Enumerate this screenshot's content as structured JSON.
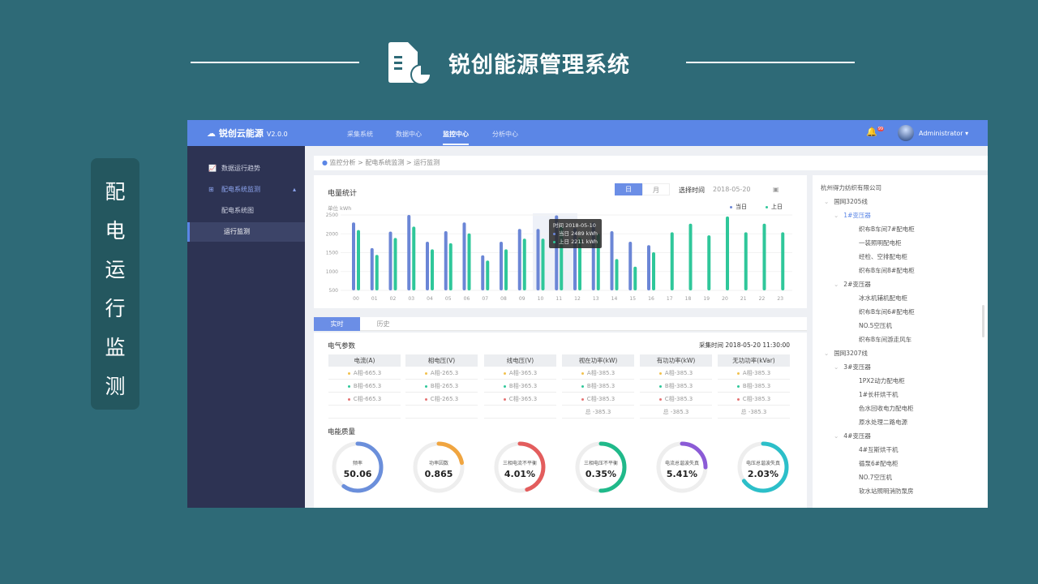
{
  "slide": {
    "title": "锐创能源管理系统",
    "side_label": [
      "配",
      "电",
      "运",
      "行",
      "监",
      "测"
    ]
  },
  "app": {
    "brand": "锐创云能源",
    "version": "V2.0.0",
    "nav": [
      "采集系统",
      "数据中心",
      "监控中心",
      "分析中心"
    ],
    "active_nav": 2,
    "notification_count": "99",
    "user": "Administrator"
  },
  "sidebar": {
    "items": [
      {
        "label": "数据运行趋势"
      },
      {
        "label": "配电系统监测"
      },
      {
        "label": "配电系统图"
      },
      {
        "label": "运行监测"
      }
    ]
  },
  "breadcrumb": "监控分析 > 配电系统监测 > 运行监测",
  "energy": {
    "title": "电量统计",
    "tab_day": "日",
    "tab_month": "月",
    "date_label": "选择时间",
    "date": "2018-05-20",
    "unit": "单位  kWh",
    "tooltip": {
      "time": "时间 2018-05-10",
      "today": "当日 2489 kWh",
      "yesterday": "上日 2211 kWh"
    }
  },
  "chart_data": {
    "type": "bar",
    "categories": [
      "00",
      "01",
      "02",
      "03",
      "04",
      "05",
      "06",
      "07",
      "08",
      "09",
      "10",
      "11",
      "12",
      "13",
      "14",
      "15",
      "16",
      "17",
      "18",
      "19",
      "20",
      "21",
      "22",
      "23"
    ],
    "yticks": [
      500,
      1000,
      1500,
      2000,
      2500
    ],
    "ylim": [
      500,
      2500
    ],
    "legend_position": "top-right",
    "series": [
      {
        "name": "当日",
        "color": "#6b86d6",
        "values": [
          2300,
          1620,
          2060,
          2500,
          1790,
          2070,
          2300,
          1430,
          1790,
          2130,
          2130,
          2489,
          2150,
          2300,
          2070,
          1790,
          1700,
          null,
          null,
          null,
          null,
          null,
          null,
          null
        ]
      },
      {
        "name": "上日",
        "color": "#2fc79a",
        "values": [
          2100,
          1440,
          1890,
          2190,
          1590,
          1750,
          2010,
          1290,
          1590,
          1870,
          1870,
          2211,
          1900,
          2000,
          1330,
          1130,
          1510,
          2040,
          2270,
          1960,
          2460,
          2040,
          2270,
          2040
        ]
      }
    ]
  },
  "tabs": {
    "realtime": "实时",
    "history": "历史"
  },
  "params": {
    "title": "电气参数",
    "time_label": "采集时间",
    "time": "2018-05-20  11:30:00",
    "columns": [
      {
        "header": "电流(A)",
        "rows": [
          "A相-665.3",
          "B相-665.3",
          "C相-665.3",
          ""
        ]
      },
      {
        "header": "相电压(V)",
        "rows": [
          "A相-265.3",
          "B相-265.3",
          "C相-265.3",
          ""
        ]
      },
      {
        "header": "线电压(V)",
        "rows": [
          "A相-365.3",
          "B相-365.3",
          "C相-365.3",
          ""
        ]
      },
      {
        "header": "视在功率(kW)",
        "rows": [
          "A相-385.3",
          "B相-385.3",
          "C相-385.3",
          "总 -385.3"
        ]
      },
      {
        "header": "有功功率(kW)",
        "rows": [
          "A相-385.3",
          "B相-385.3",
          "C相-385.3",
          "总 -385.3"
        ]
      },
      {
        "header": "无功功率(kVar)",
        "rows": [
          "A相-385.3",
          "B相-385.3",
          "C相-385.3",
          "总 -385.3"
        ]
      }
    ],
    "phase_colors": [
      "#f2c14e",
      "#2fc79a",
      "#e57373"
    ]
  },
  "quality": {
    "title": "电能质量",
    "gauges": [
      {
        "label": "频率",
        "value": "50.06",
        "fraction": 0.6,
        "color": "#6b8fdb"
      },
      {
        "label": "功率因数",
        "value": "0.865",
        "fraction": 0.22,
        "color": "#f0a540"
      },
      {
        "label": "三相电流不平衡",
        "value": "4.01%",
        "fraction": 0.45,
        "color": "#e35d5d"
      },
      {
        "label": "三相电压不平衡",
        "value": "0.35%",
        "fraction": 0.5,
        "color": "#20b98a"
      },
      {
        "label": "电流总谐波失真",
        "value": "5.41%",
        "fraction": 0.25,
        "color": "#8b5bd6"
      },
      {
        "label": "电压总谐波失真",
        "value": "2.03%",
        "fraction": 0.65,
        "color": "#2cbfc9"
      }
    ]
  },
  "tree": [
    {
      "level": 0,
      "label": "杭州得力纺织有限公司"
    },
    {
      "level": 1,
      "label": "国网3205线"
    },
    {
      "level": 2,
      "label": "1#变压器",
      "selected": true
    },
    {
      "level": 3,
      "label": "织布B车间7#配电柜"
    },
    {
      "level": 3,
      "label": "一装照明配电柜"
    },
    {
      "level": 3,
      "label": "经检、空排配电柜"
    },
    {
      "level": 3,
      "label": "织布B车间8#配电柜"
    },
    {
      "level": 2,
      "label": "2#变压器"
    },
    {
      "level": 3,
      "label": "冰水机辅机配电柜"
    },
    {
      "level": 3,
      "label": "织布B车间6#配电柜"
    },
    {
      "level": 3,
      "label": "NO.5空压机"
    },
    {
      "level": 3,
      "label": "织布B车间游走风车"
    },
    {
      "level": 1,
      "label": "国网3207线"
    },
    {
      "level": 2,
      "label": "3#变压器"
    },
    {
      "level": 3,
      "label": "1PX2动力配电柜"
    },
    {
      "level": 3,
      "label": "1#长杆烘干机"
    },
    {
      "level": 3,
      "label": "色水回收电力配电柜"
    },
    {
      "level": 3,
      "label": "原水处理二路电源"
    },
    {
      "level": 2,
      "label": "4#变压器"
    },
    {
      "level": 3,
      "label": "4#互斯烘干机"
    },
    {
      "level": 3,
      "label": "循泵6#配电柜"
    },
    {
      "level": 3,
      "label": "NO.7空压机"
    },
    {
      "level": 3,
      "label": "软水站照明消防泵房"
    }
  ]
}
